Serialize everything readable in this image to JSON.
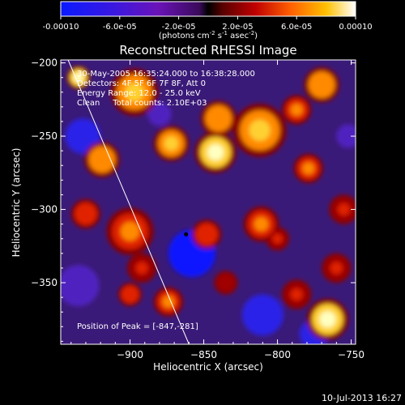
{
  "colorbar": {
    "ticks": [
      "-0.00010",
      "-6.0e-05",
      "-2.0e-05",
      "2.0e-05",
      "6.0e-05",
      "0.00010"
    ],
    "tick_values": [
      -0.0001,
      -6e-05,
      -2e-05,
      2e-05,
      6e-05,
      0.0001
    ],
    "range": [
      -0.0001,
      0.0001
    ],
    "units_base": "(photons cm",
    "units_exp1": "-2",
    "units_mid": " s",
    "units_exp2": "-1",
    "units_mid2": " asec",
    "units_exp3": "-2",
    "units_end": ")"
  },
  "chart_data": {
    "type": "heatmap",
    "title": "Reconstructed RHESSI Image",
    "xlabel": "Heliocentric X (arcsec)",
    "ylabel": "Heliocentric Y (arcsec)",
    "xlim": [
      -947,
      -747
    ],
    "ylim": [
      -392,
      -198
    ],
    "x_ticks": [
      -900,
      -850,
      -800,
      -750
    ],
    "y_ticks": [
      -200,
      -250,
      -300,
      -350
    ],
    "x_tick_labels": [
      "−900",
      "−850",
      "−800",
      "−750"
    ],
    "y_tick_labels": [
      "−200",
      "−250",
      "−300",
      "−350"
    ],
    "limb_line": [
      [
        -942,
        -198
      ],
      [
        -860,
        -392
      ]
    ],
    "peak": {
      "x": -847,
      "y": -281
    },
    "peak_marker": {
      "x": -862,
      "y": -317
    },
    "hot_spots": [
      {
        "x": -935,
        "y": -210,
        "r": 8,
        "v": 1.0
      },
      {
        "x": -897,
        "y": -220,
        "r": 16,
        "v": 0.85
      },
      {
        "x": -872,
        "y": -255,
        "r": 12,
        "v": 0.85
      },
      {
        "x": -842,
        "y": -261,
        "r": 14,
        "v": 1.0
      },
      {
        "x": -840,
        "y": -238,
        "r": 12,
        "v": 0.75
      },
      {
        "x": -812,
        "y": -246,
        "r": 18,
        "v": 0.8
      },
      {
        "x": -787,
        "y": -232,
        "r": 10,
        "v": 0.65
      },
      {
        "x": -770,
        "y": -215,
        "r": 12,
        "v": 0.75
      },
      {
        "x": -779,
        "y": -272,
        "r": 10,
        "v": 0.7
      },
      {
        "x": -919,
        "y": -266,
        "r": 12,
        "v": 0.75
      },
      {
        "x": -930,
        "y": -303,
        "r": 10,
        "v": 0.6
      },
      {
        "x": -900,
        "y": -315,
        "r": 16,
        "v": 0.7
      },
      {
        "x": -892,
        "y": -340,
        "r": 10,
        "v": 0.55
      },
      {
        "x": -900,
        "y": -358,
        "r": 8,
        "v": 0.6
      },
      {
        "x": -848,
        "y": -317,
        "r": 10,
        "v": 0.6
      },
      {
        "x": -835,
        "y": -350,
        "r": 8,
        "v": 0.45
      },
      {
        "x": -811,
        "y": -310,
        "r": 12,
        "v": 0.7
      },
      {
        "x": -800,
        "y": -320,
        "r": 8,
        "v": 0.55
      },
      {
        "x": -787,
        "y": -358,
        "r": 10,
        "v": 0.5
      },
      {
        "x": -755,
        "y": -300,
        "r": 10,
        "v": 0.55
      },
      {
        "x": -766,
        "y": -375,
        "r": 14,
        "v": 1.0
      },
      {
        "x": -874,
        "y": -363,
        "r": 10,
        "v": 0.7
      },
      {
        "x": -760,
        "y": -340,
        "r": 10,
        "v": 0.5
      }
    ],
    "cold_spots": [
      {
        "x": -932,
        "y": -250,
        "r": 12,
        "v": -0.8
      },
      {
        "x": -858,
        "y": -330,
        "r": 16,
        "v": -0.9
      },
      {
        "x": -810,
        "y": -372,
        "r": 14,
        "v": -0.8
      },
      {
        "x": -775,
        "y": -385,
        "r": 10,
        "v": -0.8
      },
      {
        "x": -935,
        "y": -352,
        "r": 14,
        "v": -0.6
      },
      {
        "x": -880,
        "y": -235,
        "r": 8,
        "v": -0.5
      },
      {
        "x": -752,
        "y": -250,
        "r": 8,
        "v": -0.5
      }
    ]
  },
  "overlay": {
    "lines": [
      "30-May-2005 16:35:24.000 to 16:38:28.000",
      "Detectors: 4F 5F 6F 7F 8F, Att 0",
      "Energy Range: 12.0 - 25.0 keV",
      "Clean     Total counts: 2.10E+03"
    ],
    "peak_text": "Position of Peak = [-847,-281]"
  },
  "footer": {
    "date": "10-Jul-2013 16:27"
  }
}
